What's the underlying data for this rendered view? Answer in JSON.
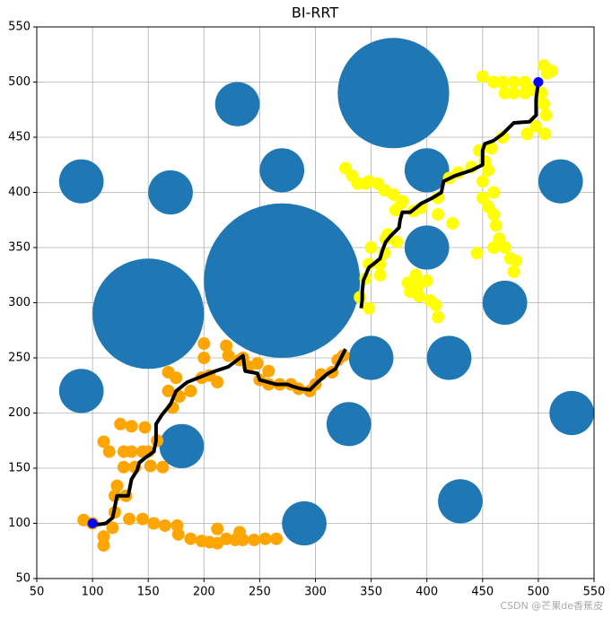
{
  "chart_data": {
    "type": "scatter",
    "title": "BI-RRT",
    "xlim": [
      50,
      550
    ],
    "ylim": [
      50,
      550
    ],
    "xticks": [
      50,
      100,
      150,
      200,
      250,
      300,
      350,
      400,
      450,
      500,
      550
    ],
    "yticks": [
      50,
      100,
      150,
      200,
      250,
      300,
      350,
      400,
      450,
      500,
      550
    ],
    "grid": true,
    "obstacles": {
      "color": "#1f77b4",
      "x": [
        370,
        270,
        150,
        90,
        170,
        230,
        270,
        400,
        520,
        400,
        470,
        350,
        420,
        90,
        180,
        330,
        530,
        430,
        290
      ],
      "y": [
        490,
        320,
        290,
        410,
        400,
        480,
        420,
        420,
        410,
        350,
        300,
        250,
        250,
        220,
        170,
        190,
        200,
        120,
        100
      ],
      "r": [
        50,
        70,
        50,
        20,
        20,
        20,
        20,
        20,
        20,
        20,
        20,
        20,
        20,
        20,
        20,
        20,
        20,
        20,
        20
      ]
    },
    "series": [
      {
        "color": "#ffa500",
        "x": [
          92,
          100,
          110,
          110,
          118,
          120,
          120,
          122,
          130,
          110,
          115,
          128,
          135,
          145,
          128,
          138,
          152,
          163,
          125,
          135,
          147,
          158,
          150,
          133,
          145,
          155,
          165,
          176,
          177,
          188,
          198,
          205,
          212,
          212,
          220,
          228,
          232,
          235,
          245,
          255,
          265,
          168,
          175,
          168,
          178,
          172,
          188,
          198,
          205,
          200,
          200,
          212,
          220,
          222,
          232,
          240,
          235,
          248,
          250,
          258,
          258,
          268,
          278,
          285,
          295,
          300,
          305,
          315,
          320,
          325
        ],
        "y": [
          103,
          100,
          88,
          80,
          96,
          110,
          125,
          134,
          125,
          174,
          165,
          165,
          165,
          165,
          151,
          151,
          152,
          151,
          190,
          188,
          187,
          175,
          165,
          104,
          104,
          100,
          98,
          98,
          90,
          86,
          84,
          83,
          82,
          95,
          86,
          85,
          92,
          85,
          85,
          86,
          86,
          237,
          232,
          220,
          215,
          205,
          220,
          232,
          234,
          263,
          250,
          228,
          261,
          252,
          248,
          242,
          250,
          245,
          230,
          238,
          226,
          226,
          226,
          222,
          220,
          226,
          235,
          237,
          248,
          252
        ]
      },
      {
        "color": "#ffff00",
        "x": [
          348,
          340,
          345,
          348,
          350,
          362,
          358,
          358,
          363,
          373,
          365,
          372,
          377,
          388,
          395,
          410,
          423,
          385,
          383,
          392,
          393,
          390,
          400,
          403,
          408,
          410,
          445,
          345,
          327,
          333,
          338,
          348,
          356,
          362,
          370,
          378,
          410,
          420,
          428,
          440,
          447,
          452,
          458,
          468,
          450,
          455,
          460,
          462,
          465,
          470,
          475,
          460,
          478,
          480,
          450,
          460,
          468,
          478,
          488,
          470,
          478,
          488,
          505,
          508,
          512,
          495,
          503,
          505,
          507,
          498,
          490,
          506,
          450,
          460,
          455
        ],
        "y": [
          295,
          305,
          322,
          335,
          350,
          345,
          335,
          325,
          358,
          355,
          362,
          384,
          390,
          383,
          386,
          380,
          372,
          310,
          318,
          315,
          306,
          325,
          320,
          302,
          298,
          287,
          345,
          408,
          422,
          415,
          408,
          410,
          408,
          402,
          398,
          392,
          395,
          413,
          418,
          423,
          438,
          428,
          440,
          450,
          395,
          387,
          380,
          370,
          358,
          350,
          340,
          350,
          328,
          338,
          505,
          500,
          500,
          500,
          500,
          490,
          490,
          490,
          515,
          508,
          510,
          493,
          490,
          480,
          470,
          460,
          453,
          453,
          410,
          400,
          420
        ]
      }
    ],
    "paths": [
      {
        "color": "#000000",
        "x": [
          100,
          105,
          112,
          118,
          120,
          122,
          132,
          135,
          140,
          142,
          148,
          155,
          157,
          157,
          162,
          170,
          175,
          185,
          195,
          210,
          222,
          235,
          237,
          248,
          250,
          265,
          275,
          280,
          287,
          295,
          302,
          310,
          318,
          327
        ],
        "y": [
          100,
          99,
          100,
          105,
          115,
          125,
          125,
          140,
          148,
          155,
          160,
          165,
          175,
          190,
          198,
          208,
          220,
          228,
          232,
          238,
          242,
          252,
          238,
          236,
          230,
          226,
          226,
          224,
          222,
          221,
          228,
          235,
          240,
          258
        ]
      },
      {
        "color": "#000000",
        "x": [
          500,
          498,
          498,
          492,
          478,
          468,
          460,
          452,
          450,
          450,
          440,
          425,
          415,
          413,
          405,
          395,
          385,
          378,
          376,
          375,
          367,
          363,
          360,
          358,
          352,
          348,
          343,
          342,
          342,
          341
        ],
        "y": [
          500,
          485,
          470,
          464,
          463,
          453,
          447,
          444,
          438,
          425,
          420,
          415,
          410,
          400,
          395,
          390,
          382,
          382,
          375,
          368,
          360,
          355,
          347,
          340,
          335,
          332,
          320,
          310,
          303,
          295
        ]
      }
    ],
    "endpoints": {
      "color": "#0000ff",
      "x": [
        100,
        500
      ],
      "y": [
        100,
        500
      ]
    },
    "watermark": "CSDN @芒果de香蕉皮"
  }
}
